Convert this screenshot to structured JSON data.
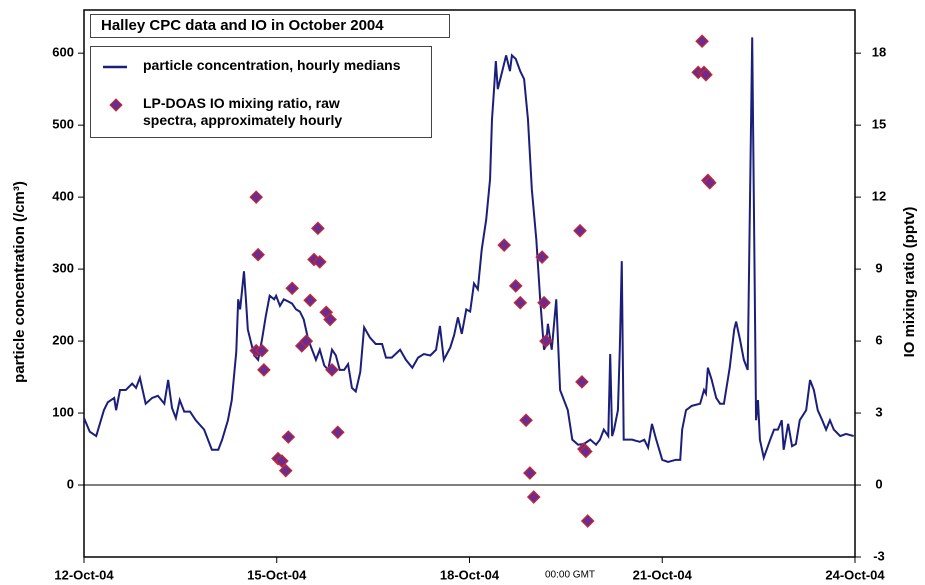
{
  "chart_data": {
    "type": "line",
    "title": "Halley CPC data and IO in October 2004",
    "ylabel": "particle concentration (/cm³)",
    "y2label": "IO mixing ratio (pptv)",
    "annotation": "00:00 GMT",
    "xlim": [
      12,
      24
    ],
    "xticks": [
      {
        "value": 12,
        "label": "12-Oct-04"
      },
      {
        "value": 15,
        "label": "15-Oct-04"
      },
      {
        "value": 18,
        "label": "18-Oct-04"
      },
      {
        "value": 21,
        "label": "21-Oct-04"
      },
      {
        "value": 24,
        "label": "24-Oct-04"
      }
    ],
    "ylim": [
      -100,
      660
    ],
    "yticks": [
      0,
      100,
      200,
      300,
      400,
      500,
      600
    ],
    "y2lim": [
      -3,
      19.8
    ],
    "y2ticks": [
      -3,
      0,
      3,
      6,
      9,
      12,
      15,
      18
    ],
    "reference_line": 0,
    "series": [
      {
        "name": "particle concentration, hourly medians",
        "type": "line",
        "color": "#1c1f7a",
        "x": [
          12.0,
          12.09,
          12.19,
          12.31,
          12.37,
          12.47,
          12.5,
          12.56,
          12.65,
          12.75,
          12.81,
          12.87,
          12.96,
          13.06,
          13.15,
          13.25,
          13.31,
          13.37,
          13.43,
          13.49,
          13.56,
          13.65,
          13.74,
          13.87,
          13.99,
          14.09,
          14.15,
          14.24,
          14.3,
          14.37,
          14.4,
          14.43,
          14.49,
          14.52,
          14.55,
          14.65,
          14.71,
          14.77,
          14.83,
          14.89,
          14.96,
          14.99,
          15.05,
          15.11,
          15.18,
          15.24,
          15.3,
          15.36,
          15.42,
          15.49,
          15.55,
          15.61,
          15.67,
          15.74,
          15.8,
          15.86,
          15.92,
          15.98,
          16.05,
          16.11,
          16.17,
          16.23,
          16.3,
          16.36,
          16.45,
          16.54,
          16.64,
          16.7,
          16.79,
          16.92,
          17.01,
          17.11,
          17.2,
          17.29,
          17.39,
          17.48,
          17.54,
          17.6,
          17.7,
          17.76,
          17.82,
          17.88,
          17.95,
          18.01,
          18.07,
          18.13,
          18.19,
          18.26,
          18.32,
          18.35,
          18.38,
          18.41,
          18.44,
          18.51,
          18.57,
          18.63,
          18.66,
          18.72,
          18.79,
          18.85,
          18.91,
          18.97,
          19.04,
          19.1,
          19.16,
          19.19,
          19.22,
          19.28,
          19.35,
          19.41,
          19.47,
          19.53,
          19.6,
          19.69,
          19.78,
          19.88,
          19.97,
          20.03,
          20.09,
          20.16,
          20.19,
          20.22,
          20.25,
          20.31,
          20.34,
          20.37,
          20.4,
          20.53,
          20.65,
          20.72,
          20.78,
          20.84,
          20.9,
          21.0,
          21.09,
          21.21,
          21.28,
          21.31,
          21.37,
          21.46,
          21.59,
          21.65,
          21.68,
          21.71,
          21.77,
          21.84,
          21.9,
          21.96,
          22.05,
          22.12,
          22.15,
          22.21,
          22.27,
          22.33,
          22.4,
          22.46,
          22.49,
          22.52,
          22.58,
          22.68,
          22.74,
          22.8,
          22.86,
          22.89,
          22.96,
          23.02,
          23.08,
          23.14,
          23.24,
          23.3,
          23.36,
          23.42,
          23.49,
          23.55,
          23.61,
          23.67,
          23.77,
          23.86,
          23.98
        ],
        "values": [
          93,
          74,
          68,
          104,
          115,
          121,
          104,
          132,
          132,
          141,
          135,
          149,
          113,
          121,
          124,
          113,
          146,
          107,
          93,
          118,
          102,
          102,
          90,
          77,
          49,
          49,
          63,
          90,
          118,
          185,
          258,
          244,
          297,
          258,
          216,
          180,
          174,
          202,
          235,
          263,
          258,
          263,
          249,
          258,
          255,
          252,
          244,
          241,
          230,
          202,
          188,
          174,
          188,
          166,
          160,
          188,
          180,
          160,
          160,
          168,
          135,
          130,
          157,
          219,
          205,
          196,
          196,
          177,
          177,
          188,
          174,
          163,
          177,
          182,
          180,
          188,
          221,
          174,
          191,
          208,
          233,
          210,
          244,
          241,
          280,
          272,
          327,
          369,
          425,
          508,
          547,
          589,
          550,
          575,
          597,
          575,
          597,
          592,
          575,
          564,
          508,
          411,
          341,
          258,
          188,
          194,
          224,
          188,
          258,
          132,
          118,
          104,
          63,
          56,
          57,
          63,
          56,
          63,
          77,
          68,
          182,
          68,
          77,
          104,
          191,
          311,
          63,
          63,
          60,
          63,
          52,
          85,
          65,
          35,
          32,
          35,
          35,
          77,
          104,
          110,
          113,
          132,
          127,
          163,
          146,
          121,
          113,
          113,
          163,
          216,
          227,
          202,
          174,
          160,
          622,
          90,
          118,
          63,
          38,
          63,
          77,
          77,
          90,
          49,
          85,
          54,
          57,
          90,
          104,
          146,
          132,
          104,
          90,
          77,
          90,
          77,
          68,
          71,
          68
        ]
      },
      {
        "name": "LP-DOAS IO mixing ratio, raw spectra, approximately hourly",
        "type": "scatter",
        "axis": "y2",
        "color": "#6a2c91",
        "edge_color": "#c8282d",
        "x": [
          14.68,
          14.71,
          14.68,
          14.77,
          14.8,
          15.02,
          15.08,
          15.14,
          15.18,
          15.24,
          15.39,
          15.46,
          15.52,
          15.58,
          15.64,
          15.67,
          15.77,
          15.83,
          15.86,
          15.95,
          18.54,
          18.72,
          18.79,
          18.88,
          18.94,
          19.0,
          19.13,
          19.16,
          19.19,
          19.72,
          19.75,
          19.78,
          19.81,
          19.84,
          21.56,
          21.62,
          21.65,
          21.68,
          21.71,
          21.74
        ],
        "values": [
          12.0,
          9.6,
          5.6,
          5.6,
          4.8,
          1.1,
          1.0,
          0.6,
          2.0,
          8.2,
          5.8,
          6.0,
          7.7,
          9.4,
          10.7,
          9.3,
          7.2,
          6.9,
          4.8,
          2.2,
          10.0,
          8.3,
          7.6,
          2.7,
          0.5,
          -0.5,
          9.5,
          7.6,
          6.0,
          10.6,
          4.3,
          1.5,
          1.4,
          -1.5,
          17.2,
          18.5,
          17.2,
          17.1,
          12.7,
          12.6
        ]
      }
    ]
  }
}
